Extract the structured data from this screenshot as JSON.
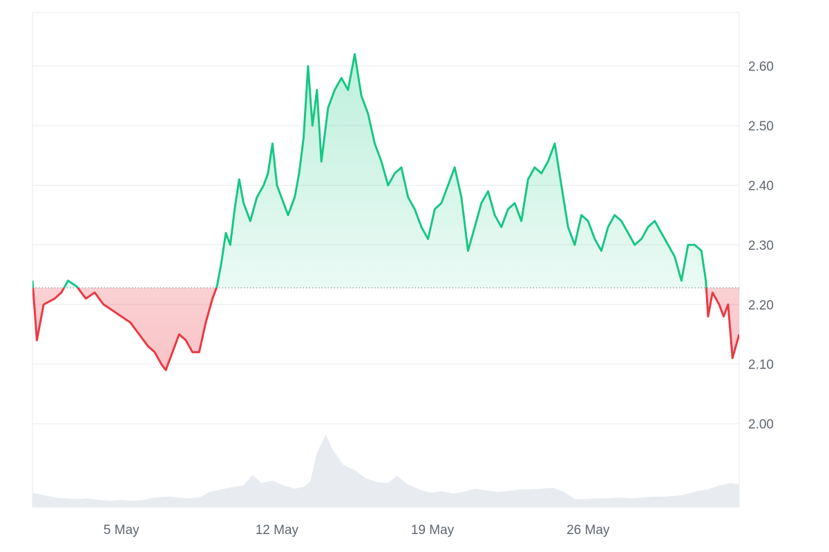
{
  "chart_data": {
    "type": "area",
    "baseline": 2.228,
    "ylim": [
      1.86,
      2.69
    ],
    "y_ticks": [
      2.0,
      2.1,
      2.2,
      2.3,
      2.4,
      2.5,
      2.6
    ],
    "y_tick_labels": [
      "2.00",
      "2.10",
      "2.20",
      "2.30",
      "2.40",
      "2.50",
      "2.60"
    ],
    "x_range": [
      1,
      32.8
    ],
    "x_ticks": [
      5,
      12,
      19,
      26
    ],
    "x_tick_labels": [
      "5 May",
      "12 May",
      "19 May",
      "26 May"
    ],
    "grid": true,
    "colors": {
      "up": "#16c784",
      "down": "#ea3943",
      "volume": "#e8ecf0",
      "grid": "#e9ebef",
      "text": "#5f6670"
    },
    "series": [
      {
        "values": [
          [
            1.0,
            2.24
          ],
          [
            1.2,
            2.14
          ],
          [
            1.5,
            2.2
          ],
          [
            2.0,
            2.21
          ],
          [
            2.3,
            2.22
          ],
          [
            2.6,
            2.24
          ],
          [
            3.0,
            2.23
          ],
          [
            3.4,
            2.21
          ],
          [
            3.8,
            2.22
          ],
          [
            4.2,
            2.2
          ],
          [
            4.6,
            2.19
          ],
          [
            5.0,
            2.18
          ],
          [
            5.4,
            2.17
          ],
          [
            5.8,
            2.15
          ],
          [
            6.2,
            2.13
          ],
          [
            6.5,
            2.12
          ],
          [
            6.8,
            2.1
          ],
          [
            7.0,
            2.09
          ],
          [
            7.3,
            2.12
          ],
          [
            7.6,
            2.15
          ],
          [
            7.9,
            2.14
          ],
          [
            8.2,
            2.12
          ],
          [
            8.5,
            2.12
          ],
          [
            8.8,
            2.17
          ],
          [
            9.1,
            2.21
          ],
          [
            9.3,
            2.23
          ],
          [
            9.5,
            2.27
          ],
          [
            9.7,
            2.32
          ],
          [
            9.9,
            2.3
          ],
          [
            10.1,
            2.36
          ],
          [
            10.3,
            2.41
          ],
          [
            10.5,
            2.37
          ],
          [
            10.8,
            2.34
          ],
          [
            11.1,
            2.38
          ],
          [
            11.4,
            2.4
          ],
          [
            11.6,
            2.42
          ],
          [
            11.8,
            2.47
          ],
          [
            12.0,
            2.4
          ],
          [
            12.2,
            2.38
          ],
          [
            12.5,
            2.35
          ],
          [
            12.8,
            2.38
          ],
          [
            13.0,
            2.42
          ],
          [
            13.2,
            2.48
          ],
          [
            13.4,
            2.6
          ],
          [
            13.6,
            2.5
          ],
          [
            13.8,
            2.56
          ],
          [
            14.0,
            2.44
          ],
          [
            14.3,
            2.53
          ],
          [
            14.6,
            2.56
          ],
          [
            14.9,
            2.58
          ],
          [
            15.2,
            2.56
          ],
          [
            15.5,
            2.62
          ],
          [
            15.8,
            2.55
          ],
          [
            16.1,
            2.52
          ],
          [
            16.4,
            2.47
          ],
          [
            16.7,
            2.44
          ],
          [
            17.0,
            2.4
          ],
          [
            17.3,
            2.42
          ],
          [
            17.6,
            2.43
          ],
          [
            17.9,
            2.38
          ],
          [
            18.2,
            2.36
          ],
          [
            18.5,
            2.33
          ],
          [
            18.8,
            2.31
          ],
          [
            19.1,
            2.36
          ],
          [
            19.4,
            2.37
          ],
          [
            19.7,
            2.4
          ],
          [
            20.0,
            2.43
          ],
          [
            20.3,
            2.38
          ],
          [
            20.6,
            2.29
          ],
          [
            20.9,
            2.33
          ],
          [
            21.2,
            2.37
          ],
          [
            21.5,
            2.39
          ],
          [
            21.8,
            2.35
          ],
          [
            22.1,
            2.33
          ],
          [
            22.4,
            2.36
          ],
          [
            22.7,
            2.37
          ],
          [
            23.0,
            2.34
          ],
          [
            23.3,
            2.41
          ],
          [
            23.6,
            2.43
          ],
          [
            23.9,
            2.42
          ],
          [
            24.2,
            2.44
          ],
          [
            24.5,
            2.47
          ],
          [
            24.8,
            2.4
          ],
          [
            25.1,
            2.33
          ],
          [
            25.4,
            2.3
          ],
          [
            25.7,
            2.35
          ],
          [
            26.0,
            2.34
          ],
          [
            26.3,
            2.31
          ],
          [
            26.6,
            2.29
          ],
          [
            26.9,
            2.33
          ],
          [
            27.2,
            2.35
          ],
          [
            27.5,
            2.34
          ],
          [
            27.8,
            2.32
          ],
          [
            28.1,
            2.3
          ],
          [
            28.4,
            2.31
          ],
          [
            28.7,
            2.33
          ],
          [
            29.0,
            2.34
          ],
          [
            29.3,
            2.32
          ],
          [
            29.6,
            2.3
          ],
          [
            29.9,
            2.28
          ],
          [
            30.2,
            2.24
          ],
          [
            30.5,
            2.3
          ],
          [
            30.8,
            2.3
          ],
          [
            31.1,
            2.29
          ],
          [
            31.3,
            2.24
          ],
          [
            31.4,
            2.18
          ],
          [
            31.6,
            2.22
          ],
          [
            31.9,
            2.2
          ],
          [
            32.1,
            2.18
          ],
          [
            32.3,
            2.2
          ],
          [
            32.5,
            2.11
          ],
          [
            32.8,
            2.15
          ]
        ]
      }
    ],
    "volume": [
      [
        1.0,
        0.18
      ],
      [
        1.5,
        0.15
      ],
      [
        2.0,
        0.12
      ],
      [
        2.5,
        0.11
      ],
      [
        3.0,
        0.1
      ],
      [
        3.5,
        0.11
      ],
      [
        4.0,
        0.09
      ],
      [
        4.5,
        0.08
      ],
      [
        5.0,
        0.09
      ],
      [
        5.5,
        0.08
      ],
      [
        6.0,
        0.09
      ],
      [
        6.5,
        0.12
      ],
      [
        7.0,
        0.13
      ],
      [
        7.5,
        0.12
      ],
      [
        8.0,
        0.11
      ],
      [
        8.5,
        0.12
      ],
      [
        9.0,
        0.19
      ],
      [
        9.5,
        0.22
      ],
      [
        10.0,
        0.25
      ],
      [
        10.5,
        0.27
      ],
      [
        10.9,
        0.4
      ],
      [
        11.3,
        0.3
      ],
      [
        11.8,
        0.33
      ],
      [
        12.3,
        0.27
      ],
      [
        12.8,
        0.23
      ],
      [
        13.2,
        0.25
      ],
      [
        13.5,
        0.32
      ],
      [
        13.8,
        0.68
      ],
      [
        14.2,
        0.9
      ],
      [
        14.5,
        0.72
      ],
      [
        15.0,
        0.52
      ],
      [
        15.5,
        0.46
      ],
      [
        16.0,
        0.36
      ],
      [
        16.5,
        0.31
      ],
      [
        17.0,
        0.3
      ],
      [
        17.4,
        0.39
      ],
      [
        17.9,
        0.28
      ],
      [
        18.4,
        0.22
      ],
      [
        18.9,
        0.18
      ],
      [
        19.4,
        0.2
      ],
      [
        19.9,
        0.17
      ],
      [
        20.4,
        0.19
      ],
      [
        20.9,
        0.23
      ],
      [
        21.4,
        0.21
      ],
      [
        21.9,
        0.19
      ],
      [
        22.4,
        0.2
      ],
      [
        22.9,
        0.22
      ],
      [
        23.4,
        0.22
      ],
      [
        23.9,
        0.23
      ],
      [
        24.4,
        0.24
      ],
      [
        24.9,
        0.19
      ],
      [
        25.4,
        0.1
      ],
      [
        25.9,
        0.1
      ],
      [
        26.4,
        0.11
      ],
      [
        26.9,
        0.11
      ],
      [
        27.4,
        0.12
      ],
      [
        27.9,
        0.11
      ],
      [
        28.4,
        0.12
      ],
      [
        28.9,
        0.13
      ],
      [
        29.4,
        0.13
      ],
      [
        29.9,
        0.14
      ],
      [
        30.4,
        0.16
      ],
      [
        30.9,
        0.2
      ],
      [
        31.4,
        0.22
      ],
      [
        31.9,
        0.27
      ],
      [
        32.4,
        0.3
      ],
      [
        32.8,
        0.28
      ]
    ]
  }
}
